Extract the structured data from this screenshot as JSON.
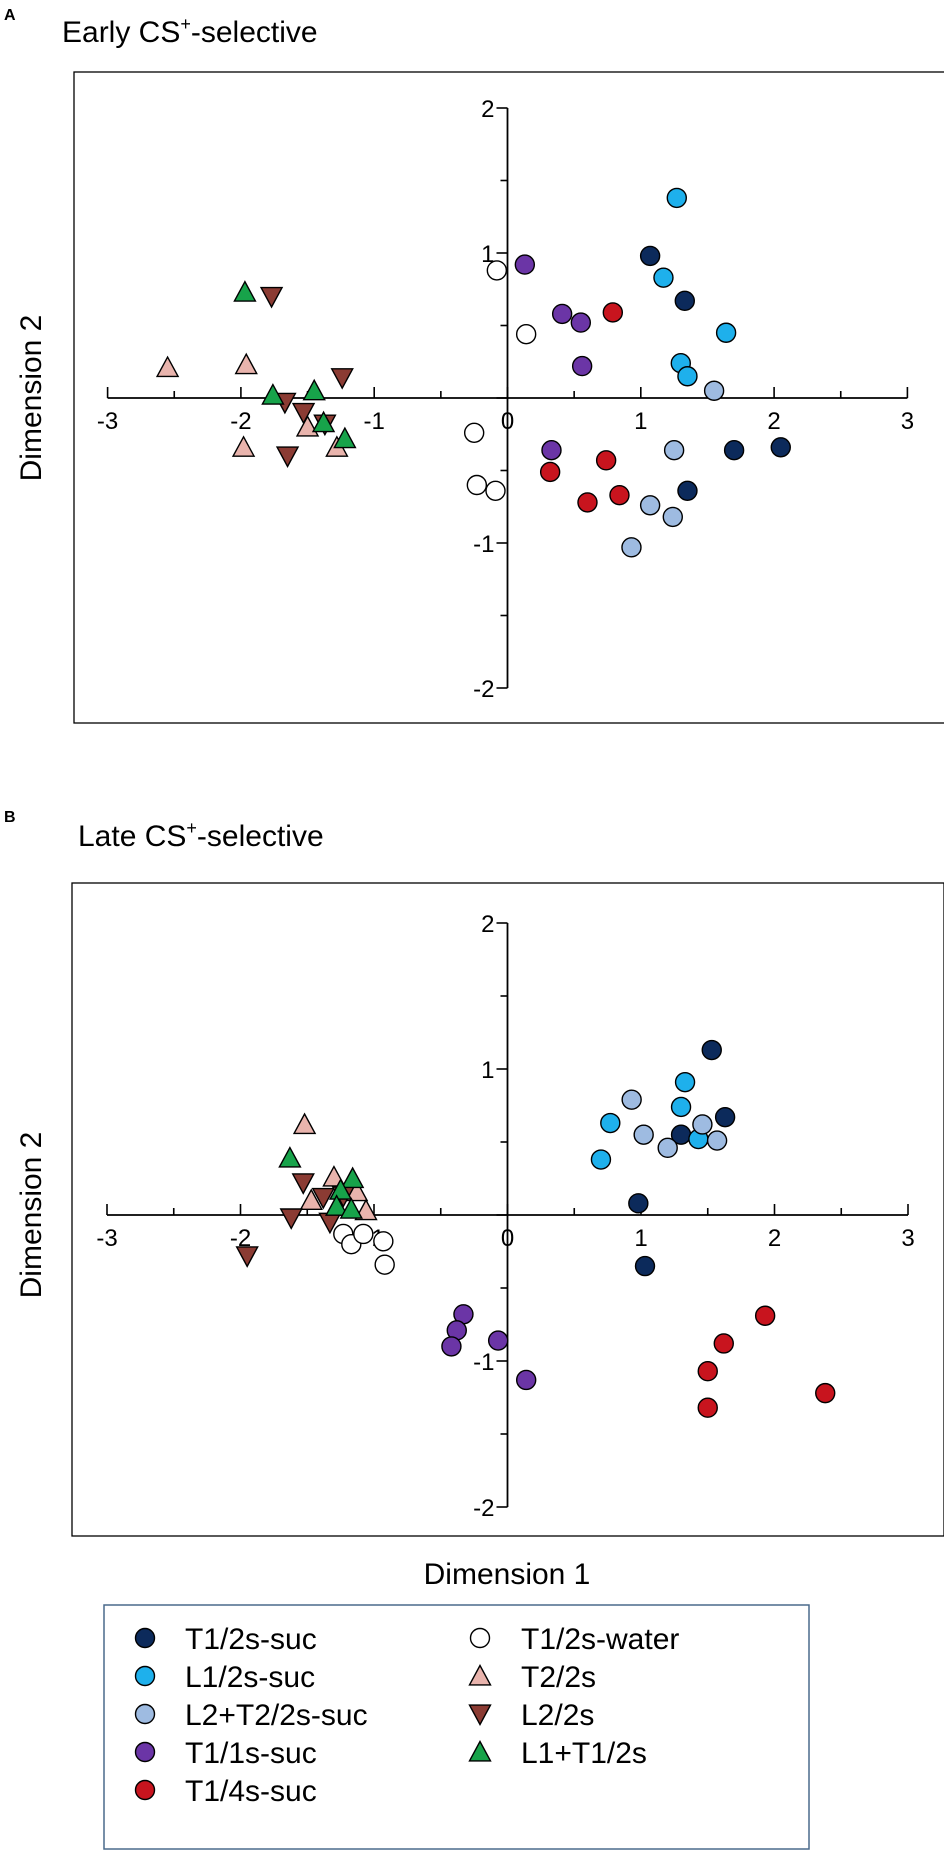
{
  "chart_data": [
    {
      "type": "scatter",
      "panel_label": "A",
      "title": "Early CS",
      "title_superscript": "+",
      "title_suffix": "-selective",
      "xlabel": "",
      "ylabel": "Dimension 2",
      "xlim": [
        -3,
        3
      ],
      "ylim": [
        -2,
        2
      ],
      "xticks": [
        -3,
        -2,
        -1,
        0,
        1,
        2,
        3
      ],
      "yticks": [
        -2,
        -1,
        0,
        1,
        2
      ],
      "xtick_labels": [
        "-3",
        "-2",
        "-1",
        "0",
        "1",
        "2",
        "3"
      ],
      "ytick_labels": [
        "-2",
        "-1",
        "",
        "1",
        "2"
      ],
      "series": [
        {
          "name": "T1/2s-suc",
          "points": [
            [
              1.07,
              0.98
            ],
            [
              1.33,
              0.67
            ],
            [
              1.7,
              -0.36
            ],
            [
              1.35,
              -0.64
            ],
            [
              2.05,
              -0.34
            ]
          ]
        },
        {
          "name": "L1/2s-suc",
          "points": [
            [
              1.27,
              1.38
            ],
            [
              1.17,
              0.83
            ],
            [
              1.64,
              0.45
            ],
            [
              1.3,
              0.24
            ],
            [
              1.35,
              0.15
            ]
          ]
        },
        {
          "name": "L2+T2/2s-suc",
          "points": [
            [
              1.55,
              0.05
            ],
            [
              1.25,
              -0.36
            ],
            [
              1.07,
              -0.74
            ],
            [
              1.24,
              -0.82
            ],
            [
              0.93,
              -1.03
            ]
          ]
        },
        {
          "name": "T1/1s-suc",
          "points": [
            [
              0.13,
              0.92
            ],
            [
              0.41,
              0.58
            ],
            [
              0.55,
              0.52
            ],
            [
              0.56,
              0.22
            ],
            [
              0.33,
              -0.36
            ]
          ]
        },
        {
          "name": "T1/4s-suc",
          "points": [
            [
              0.79,
              0.59
            ],
            [
              0.74,
              -0.43
            ],
            [
              0.32,
              -0.51
            ],
            [
              0.6,
              -0.72
            ],
            [
              0.84,
              -0.67
            ]
          ]
        },
        {
          "name": "T1/2s-water",
          "points": [
            [
              -0.08,
              0.88
            ],
            [
              0.14,
              0.44
            ],
            [
              -0.25,
              -0.24
            ],
            [
              -0.23,
              -0.6
            ],
            [
              -0.09,
              -0.64
            ]
          ]
        },
        {
          "name": "T2/2s",
          "points": [
            [
              -2.55,
              0.21
            ],
            [
              -1.96,
              0.23
            ],
            [
              -1.98,
              -0.34
            ],
            [
              -1.5,
              -0.2
            ],
            [
              -1.28,
              -0.34
            ]
          ]
        },
        {
          "name": "L2/2s",
          "points": [
            [
              -1.77,
              0.7
            ],
            [
              -1.24,
              0.14
            ],
            [
              -1.67,
              -0.03
            ],
            [
              -1.53,
              -0.1
            ],
            [
              -1.37,
              -0.18
            ],
            [
              -1.65,
              -0.4
            ]
          ]
        },
        {
          "name": "L1+T1/2s",
          "points": [
            [
              -1.97,
              0.73
            ],
            [
              -1.76,
              0.02
            ],
            [
              -1.45,
              0.05
            ],
            [
              -1.38,
              -0.17
            ],
            [
              -1.22,
              -0.28
            ]
          ]
        }
      ]
    },
    {
      "type": "scatter",
      "panel_label": "B",
      "title": "Late CS",
      "title_superscript": "+",
      "title_suffix": "-selective",
      "xlabel": "Dimension 1",
      "ylabel": "Dimension 2",
      "xlim": [
        -3,
        3
      ],
      "ylim": [
        -2,
        2
      ],
      "xticks": [
        -3,
        -2,
        -1,
        0,
        1,
        2,
        3
      ],
      "yticks": [
        -2,
        -1,
        0,
        1,
        2
      ],
      "xtick_labels": [
        "-3",
        "-2",
        "-1",
        "0",
        "1",
        "2",
        "3"
      ],
      "ytick_labels": [
        "-2",
        "-1",
        "",
        "1",
        "2"
      ],
      "series": [
        {
          "name": "T1/2s-suc",
          "points": [
            [
              1.53,
              1.13
            ],
            [
              1.63,
              0.67
            ],
            [
              1.3,
              0.55
            ],
            [
              0.98,
              0.08
            ],
            [
              1.03,
              -0.35
            ]
          ]
        },
        {
          "name": "L1/2s-suc",
          "points": [
            [
              1.33,
              0.91
            ],
            [
              1.3,
              0.74
            ],
            [
              0.77,
              0.63
            ],
            [
              0.7,
              0.38
            ],
            [
              1.43,
              0.52
            ]
          ]
        },
        {
          "name": "L2+T2/2s-suc",
          "points": [
            [
              0.93,
              0.79
            ],
            [
              1.02,
              0.55
            ],
            [
              1.2,
              0.46
            ],
            [
              1.46,
              0.62
            ],
            [
              1.57,
              0.51
            ]
          ]
        },
        {
          "name": "T1/1s-suc",
          "points": [
            [
              -0.33,
              -0.68
            ],
            [
              -0.38,
              -0.79
            ],
            [
              -0.42,
              -0.9
            ],
            [
              -0.07,
              -0.86
            ],
            [
              0.14,
              -1.13
            ]
          ]
        },
        {
          "name": "T1/4s-suc",
          "points": [
            [
              1.93,
              -0.69
            ],
            [
              1.62,
              -0.88
            ],
            [
              1.5,
              -1.07
            ],
            [
              1.5,
              -1.32
            ],
            [
              2.38,
              -1.22
            ]
          ]
        },
        {
          "name": "T1/2s-water",
          "points": [
            [
              -1.23,
              -0.13
            ],
            [
              -1.17,
              -0.2
            ],
            [
              -1.08,
              -0.13
            ],
            [
              -0.93,
              -0.18
            ],
            [
              -0.92,
              -0.34
            ]
          ]
        },
        {
          "name": "T2/2s",
          "points": [
            [
              -1.52,
              0.62
            ],
            [
              -1.3,
              0.26
            ],
            [
              -1.13,
              0.16
            ],
            [
              -1.47,
              0.1
            ],
            [
              -1.06,
              0.03
            ]
          ]
        },
        {
          "name": "L2/2s",
          "points": [
            [
              -1.53,
              0.22
            ],
            [
              -1.38,
              0.12
            ],
            [
              -1.23,
              0.13
            ],
            [
              -1.62,
              -0.02
            ],
            [
              -1.33,
              -0.05
            ],
            [
              -1.95,
              -0.28
            ]
          ]
        },
        {
          "name": "L1+T1/2s",
          "points": [
            [
              -1.63,
              0.39
            ],
            [
              -1.16,
              0.25
            ],
            [
              -1.25,
              0.17
            ],
            [
              -1.28,
              0.06
            ],
            [
              -1.17,
              0.04
            ]
          ]
        }
      ]
    }
  ],
  "legend": {
    "left_items": [
      {
        "label": "T1/2s-suc",
        "series": "T1/2s-suc"
      },
      {
        "label": "L1/2s-suc",
        "series": "L1/2s-suc"
      },
      {
        "label": "L2+T2/2s-suc",
        "series": "L2+T2/2s-suc"
      },
      {
        "label": "T1/1s-suc",
        "series": "T1/1s-suc"
      },
      {
        "label": "T1/4s-suc",
        "series": "T1/4s-suc"
      }
    ],
    "right_items": [
      {
        "label": "T1/2s-water",
        "series": "T1/2s-water"
      },
      {
        "label": "T2/2s",
        "series": "T2/2s"
      },
      {
        "label": "L2/2s",
        "series": "L2/2s"
      },
      {
        "label": "L1+T1/2s",
        "series": "L1+T1/2s"
      }
    ]
  },
  "series_styles": {
    "T1/2s-suc": {
      "marker": "circle",
      "fill": "#0c2a5b"
    },
    "L1/2s-suc": {
      "marker": "circle",
      "fill": "#1eb0ec"
    },
    "L2+T2/2s-suc": {
      "marker": "circle",
      "fill": "#9ebbe1"
    },
    "T1/1s-suc": {
      "marker": "circle",
      "fill": "#6b35a6"
    },
    "T1/4s-suc": {
      "marker": "circle",
      "fill": "#c8141e"
    },
    "T1/2s-water": {
      "marker": "circle",
      "fill": "#ffffff"
    },
    "T2/2s": {
      "marker": "triangle-up",
      "fill": "#e9b4ad"
    },
    "L2/2s": {
      "marker": "triangle-down",
      "fill": "#8b3b33"
    },
    "L1+T1/2s": {
      "marker": "triangle-up",
      "fill": "#17a34a"
    }
  },
  "colors": {
    "frame": "#000000",
    "legend_border": "#4a6a8c",
    "marker_stroke": "#000000"
  }
}
